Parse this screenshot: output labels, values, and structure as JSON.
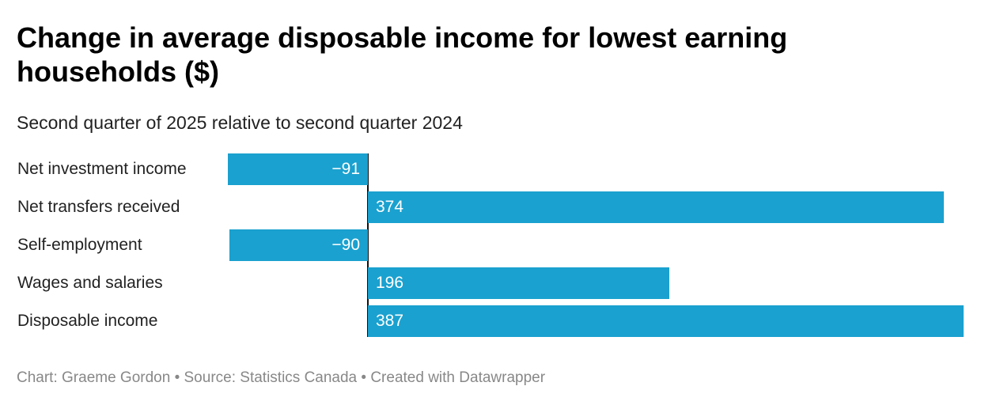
{
  "header": {
    "title": "Change in average disposable income for lowest earning households ($)",
    "subtitle": "Second quarter of 2025 relative to second quarter 2024"
  },
  "chart_data": {
    "type": "bar",
    "orientation": "horizontal",
    "title": "Change in average disposable income for lowest earning households ($)",
    "subtitle": "Second quarter of 2025 relative to second quarter 2024",
    "categories": [
      "Net investment income",
      "Net transfers received",
      "Self-employment",
      "Wages and salaries",
      "Disposable income"
    ],
    "values": [
      -91,
      374,
      -90,
      196,
      387
    ],
    "value_labels": [
      "−91",
      "374",
      "−90",
      "196",
      "387"
    ],
    "xlim": [
      -91,
      387
    ],
    "grid": false,
    "bar_color": "#1aa1cf",
    "xlabel": "",
    "ylabel": ""
  },
  "footer": {
    "text": "Chart: Graeme Gordon • Source: Statistics Canada • Created with Datawrapper"
  }
}
